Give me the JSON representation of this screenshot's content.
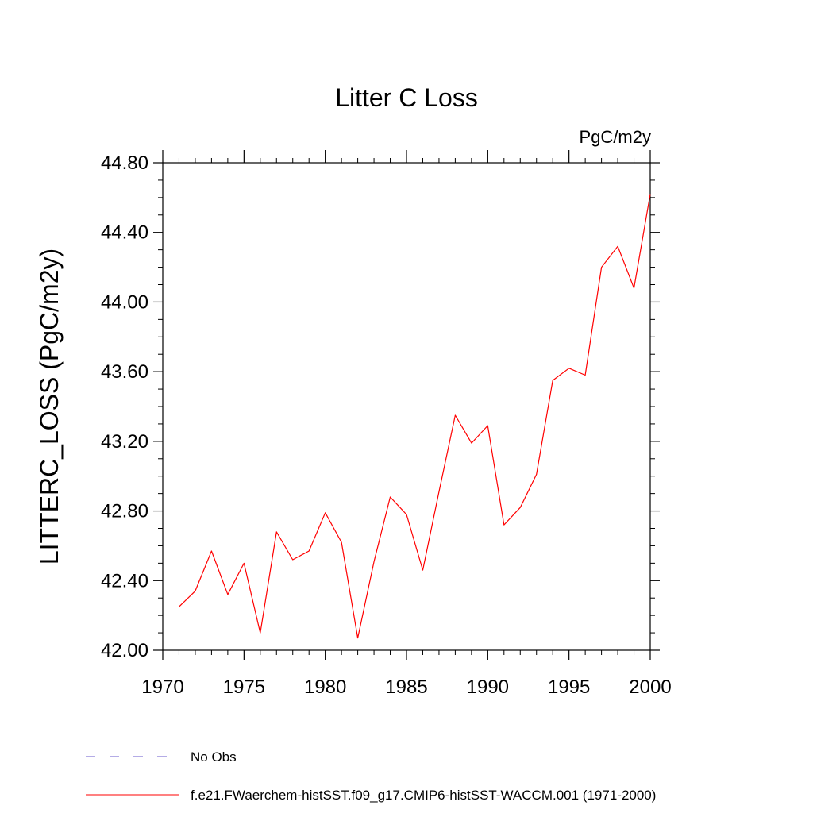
{
  "chart_data": {
    "type": "line",
    "title": "Litter C Loss",
    "units_label": "PgC/m2y",
    "xlabel": "",
    "ylabel": "LITTERC_LOSS  (PgC/m2y)",
    "xlim": [
      1970,
      2000
    ],
    "ylim": [
      42.0,
      44.8
    ],
    "x_ticks": [
      1970,
      1975,
      1980,
      1985,
      1990,
      1995,
      2000
    ],
    "x_tick_labels": [
      "1970",
      "1975",
      "1980",
      "1985",
      "1990",
      "1995",
      "2000"
    ],
    "y_ticks": [
      42.0,
      42.4,
      42.8,
      43.2,
      43.6,
      44.0,
      44.4,
      44.8
    ],
    "y_tick_labels": [
      "42.00",
      "42.40",
      "42.80",
      "43.20",
      "43.60",
      "44.00",
      "44.40",
      "44.80"
    ],
    "grid": false,
    "series": [
      {
        "name": "f.e21.FWaerchem-histSST.f09_g17.CMIP6-histSST-WACCM.001 (1971-2000)",
        "color": "#ff0000",
        "x": [
          1971,
          1972,
          1973,
          1974,
          1975,
          1976,
          1977,
          1978,
          1979,
          1980,
          1981,
          1982,
          1983,
          1984,
          1985,
          1986,
          1987,
          1988,
          1989,
          1990,
          1991,
          1992,
          1993,
          1994,
          1995,
          1996,
          1997,
          1998,
          1999,
          2000
        ],
        "y": [
          42.25,
          42.34,
          42.57,
          42.32,
          42.5,
          42.1,
          42.68,
          42.52,
          42.57,
          42.79,
          42.62,
          42.07,
          42.51,
          42.88,
          42.78,
          42.46,
          42.91,
          43.35,
          43.19,
          43.29,
          42.72,
          42.82,
          43.01,
          43.55,
          43.62,
          43.58,
          44.2,
          44.32,
          44.08,
          44.62
        ]
      }
    ],
    "legend": {
      "placement": "bottom",
      "entries": [
        {
          "label": "No Obs",
          "style": "dashed",
          "color": "#6a5acd"
        },
        {
          "label": "f.e21.FWaerchem-histSST.f09_g17.CMIP6-histSST-WACCM.001 (1971-2000)",
          "style": "solid",
          "color": "#ff0000"
        }
      ]
    }
  }
}
